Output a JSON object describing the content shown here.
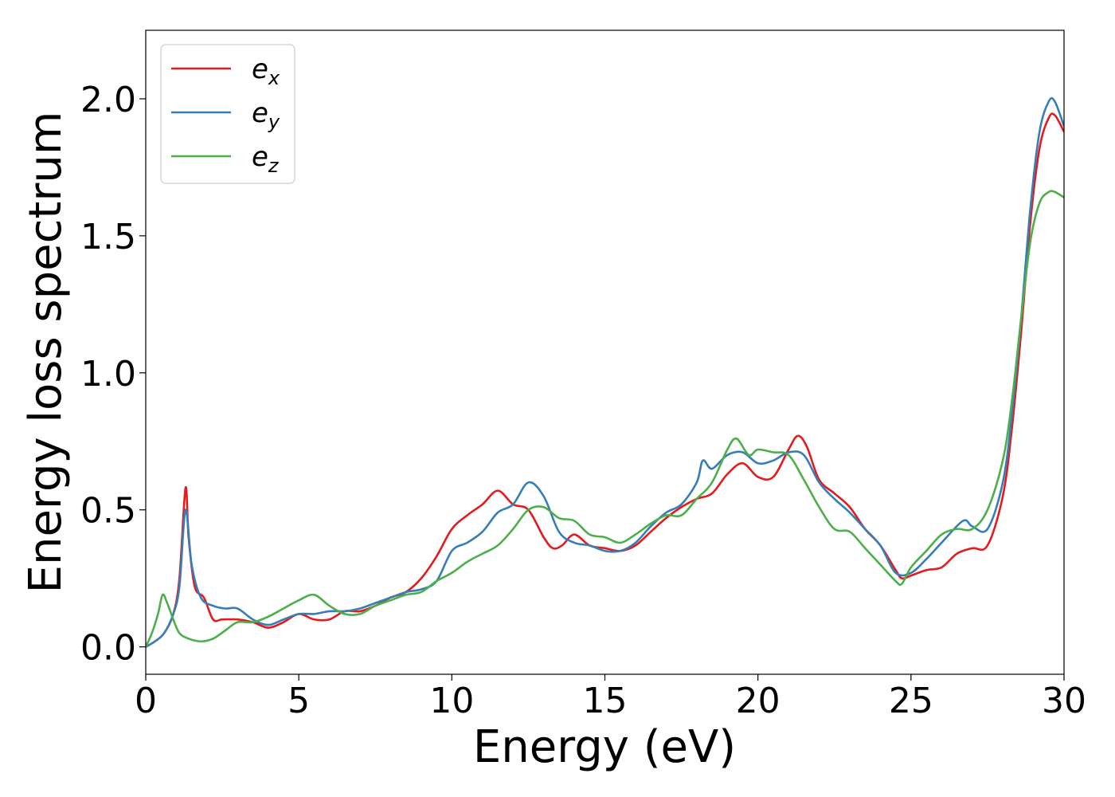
{
  "chart_data": {
    "type": "line",
    "title": "",
    "xlabel": "Energy (eV)",
    "ylabel": "Energy loss spectrum",
    "xlim": [
      0,
      30
    ],
    "ylim": [
      -0.1,
      2.25
    ],
    "xticks": [
      0,
      5,
      10,
      15,
      20,
      25,
      30
    ],
    "xtick_labels": [
      "0",
      "5",
      "10",
      "15",
      "20",
      "25",
      "30"
    ],
    "yticks": [
      0.0,
      0.5,
      1.0,
      1.5,
      2.0
    ],
    "ytick_labels": [
      "0.0",
      "0.5",
      "1.0",
      "1.5",
      "2.0"
    ],
    "grid": false,
    "legend_position": "top-left",
    "series": [
      {
        "name": "e_x",
        "label_base": "e",
        "label_sub": "x",
        "color": "#e41a1c",
        "x": [
          0,
          0.3,
          0.6,
          0.9,
          1.1,
          1.3,
          1.4,
          1.6,
          1.9,
          2.2,
          2.5,
          3.0,
          3.5,
          4.0,
          4.5,
          5.0,
          5.5,
          6.0,
          6.5,
          7.0,
          7.5,
          8.0,
          8.5,
          9.0,
          9.5,
          10.0,
          10.5,
          11.0,
          11.5,
          12.0,
          12.5,
          13.0,
          13.3,
          13.6,
          14.0,
          14.5,
          15.0,
          15.5,
          16.0,
          16.5,
          17.0,
          17.5,
          18.0,
          18.5,
          19.0,
          19.5,
          20.0,
          20.5,
          21.0,
          21.3,
          21.6,
          22.0,
          22.5,
          23.0,
          23.5,
          24.0,
          24.5,
          24.7,
          25.0,
          25.5,
          26.0,
          26.5,
          27.0,
          27.5,
          28.0,
          28.3,
          28.6,
          28.9,
          29.2,
          29.5,
          29.7,
          30.0
        ],
        "y": [
          0.0,
          0.02,
          0.05,
          0.12,
          0.25,
          0.58,
          0.4,
          0.22,
          0.18,
          0.1,
          0.1,
          0.1,
          0.09,
          0.07,
          0.09,
          0.12,
          0.1,
          0.1,
          0.13,
          0.13,
          0.15,
          0.18,
          0.2,
          0.25,
          0.33,
          0.43,
          0.48,
          0.52,
          0.57,
          0.52,
          0.5,
          0.4,
          0.36,
          0.37,
          0.41,
          0.37,
          0.36,
          0.35,
          0.37,
          0.42,
          0.47,
          0.51,
          0.54,
          0.56,
          0.63,
          0.67,
          0.62,
          0.62,
          0.72,
          0.77,
          0.73,
          0.61,
          0.56,
          0.51,
          0.43,
          0.37,
          0.28,
          0.25,
          0.26,
          0.28,
          0.29,
          0.34,
          0.36,
          0.37,
          0.55,
          0.8,
          1.15,
          1.55,
          1.82,
          1.93,
          1.94,
          1.88
        ]
      },
      {
        "name": "e_y",
        "label_base": "e",
        "label_sub": "y",
        "color": "#377eb8",
        "x": [
          0,
          0.3,
          0.6,
          0.9,
          1.1,
          1.3,
          1.5,
          1.8,
          2.2,
          2.6,
          3.0,
          3.5,
          4.0,
          4.5,
          5.0,
          5.5,
          6.0,
          6.5,
          7.0,
          7.5,
          8.0,
          8.5,
          9.0,
          9.5,
          10.0,
          10.5,
          11.0,
          11.5,
          12.0,
          12.5,
          13.0,
          13.5,
          14.0,
          14.5,
          15.0,
          15.5,
          16.0,
          16.5,
          17.0,
          17.5,
          18.0,
          18.2,
          18.5,
          19.0,
          19.5,
          20.0,
          20.5,
          21.0,
          21.5,
          22.0,
          22.5,
          23.0,
          23.5,
          24.0,
          24.5,
          25.0,
          25.5,
          26.0,
          26.7,
          27.0,
          27.5,
          28.0,
          28.3,
          28.6,
          28.9,
          29.2,
          29.5,
          29.7,
          30.0
        ],
        "y": [
          0.0,
          0.02,
          0.05,
          0.12,
          0.22,
          0.5,
          0.3,
          0.18,
          0.15,
          0.14,
          0.14,
          0.1,
          0.08,
          0.1,
          0.12,
          0.12,
          0.13,
          0.13,
          0.14,
          0.16,
          0.18,
          0.2,
          0.21,
          0.24,
          0.35,
          0.38,
          0.42,
          0.49,
          0.52,
          0.6,
          0.55,
          0.42,
          0.38,
          0.37,
          0.35,
          0.35,
          0.38,
          0.44,
          0.49,
          0.52,
          0.6,
          0.68,
          0.65,
          0.7,
          0.71,
          0.67,
          0.68,
          0.71,
          0.7,
          0.6,
          0.54,
          0.49,
          0.43,
          0.37,
          0.27,
          0.27,
          0.32,
          0.38,
          0.46,
          0.44,
          0.43,
          0.6,
          0.85,
          1.2,
          1.6,
          1.88,
          1.99,
          1.99,
          1.9
        ]
      },
      {
        "name": "e_z",
        "label_base": "e",
        "label_sub": "z",
        "color": "#4daf4a",
        "x": [
          0,
          0.2,
          0.4,
          0.55,
          0.7,
          0.9,
          1.1,
          1.4,
          1.8,
          2.2,
          2.6,
          3.0,
          3.5,
          4.0,
          4.5,
          5.0,
          5.5,
          6.0,
          6.5,
          7.0,
          7.5,
          8.0,
          8.5,
          9.0,
          9.5,
          10.0,
          10.5,
          11.0,
          11.5,
          12.0,
          12.5,
          13.0,
          13.5,
          14.0,
          14.5,
          15.0,
          15.5,
          16.0,
          16.5,
          17.0,
          17.5,
          18.0,
          18.5,
          19.0,
          19.3,
          19.7,
          20.0,
          20.5,
          21.0,
          21.5,
          22.0,
          22.5,
          23.0,
          23.5,
          24.0,
          24.5,
          24.7,
          25.0,
          25.5,
          26.0,
          26.5,
          27.0,
          27.5,
          28.0,
          28.3,
          28.6,
          28.9,
          29.2,
          29.5,
          29.7,
          30.0
        ],
        "y": [
          0.0,
          0.05,
          0.12,
          0.19,
          0.16,
          0.1,
          0.05,
          0.03,
          0.02,
          0.03,
          0.06,
          0.09,
          0.09,
          0.11,
          0.14,
          0.17,
          0.19,
          0.15,
          0.12,
          0.12,
          0.15,
          0.17,
          0.19,
          0.2,
          0.24,
          0.27,
          0.31,
          0.34,
          0.37,
          0.43,
          0.5,
          0.51,
          0.47,
          0.46,
          0.41,
          0.4,
          0.38,
          0.41,
          0.45,
          0.48,
          0.48,
          0.54,
          0.6,
          0.72,
          0.76,
          0.7,
          0.72,
          0.71,
          0.7,
          0.61,
          0.51,
          0.43,
          0.42,
          0.36,
          0.3,
          0.24,
          0.23,
          0.29,
          0.35,
          0.41,
          0.43,
          0.43,
          0.5,
          0.68,
          0.9,
          1.2,
          1.48,
          1.62,
          1.66,
          1.66,
          1.64
        ]
      }
    ]
  }
}
